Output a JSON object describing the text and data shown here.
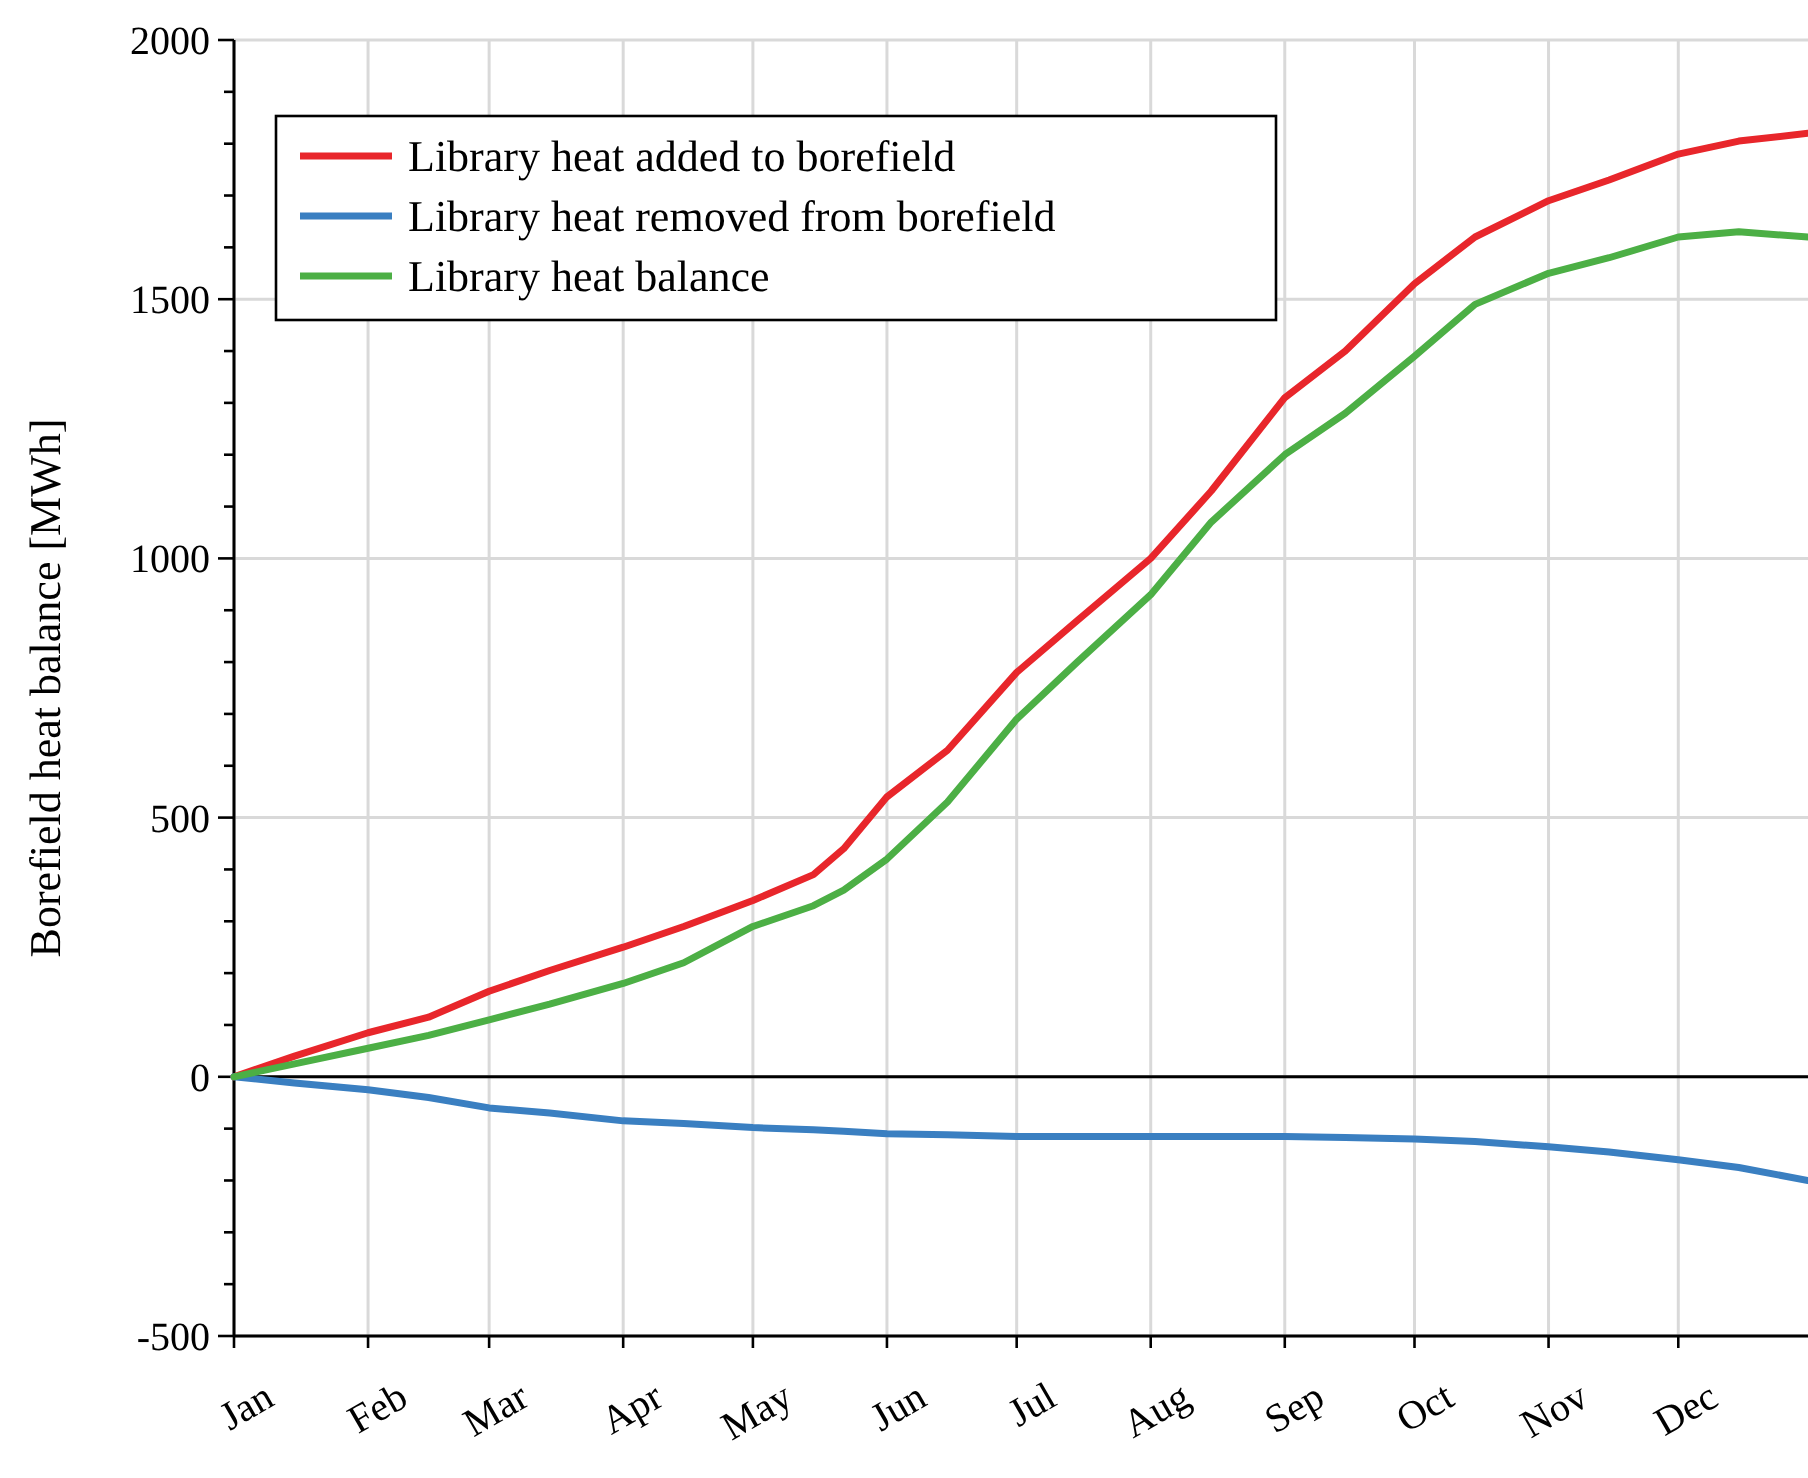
{
  "chart_data": {
    "type": "line",
    "ylabel": "Borefield heat balance [MWh]",
    "xlim": [
      "--01-01",
      "--12-31"
    ],
    "xticks": [
      {
        "value": "--01-01",
        "label": "Jan"
      },
      {
        "value": "--02-01",
        "label": "Feb"
      },
      {
        "value": "--03-01",
        "label": "Mar"
      },
      {
        "value": "--04-01",
        "label": "Apr"
      },
      {
        "value": "--05-01",
        "label": "May"
      },
      {
        "value": "--06-01",
        "label": "Jun"
      },
      {
        "value": "--07-01",
        "label": "Jul"
      },
      {
        "value": "--08-01",
        "label": "Aug"
      },
      {
        "value": "--09-01",
        "label": "Sep"
      },
      {
        "value": "--10-01",
        "label": "Oct"
      },
      {
        "value": "--11-01",
        "label": "Nov"
      },
      {
        "value": "--12-01",
        "label": "Dec"
      }
    ],
    "ylim": [
      -500,
      2000
    ],
    "yticks": [
      -500,
      {
        "value": -400,
        "label": null
      },
      {
        "value": -300,
        "label": null
      },
      {
        "value": -200,
        "label": null
      },
      {
        "value": -100,
        "label": null
      },
      0,
      {
        "value": 100,
        "label": null
      },
      {
        "value": 200,
        "label": null
      },
      {
        "value": 300,
        "label": null
      },
      {
        "value": 400,
        "label": null
      },
      500,
      {
        "value": 600,
        "label": null
      },
      {
        "value": 700,
        "label": null
      },
      {
        "value": 800,
        "label": null
      },
      {
        "value": 900,
        "label": null
      },
      1000,
      {
        "value": 1100,
        "label": null
      },
      {
        "value": 1200,
        "label": null
      },
      {
        "value": 1300,
        "label": null
      },
      {
        "value": 1400,
        "label": null
      },
      1500,
      {
        "value": 1600,
        "label": null
      },
      {
        "value": 1700,
        "label": null
      },
      {
        "value": 1800,
        "label": null
      },
      {
        "value": 1900,
        "label": null
      },
      2000
    ],
    "x": [
      "--01-01",
      "--01-15",
      "--02-01",
      "--02-15",
      "--03-01",
      "--03-15",
      "--04-01",
      "--04-15",
      "--05-01",
      "--05-15",
      "--05-22",
      "--06-01",
      "--06-15",
      "--07-01",
      "--07-15",
      "--08-01",
      "--08-15",
      "--09-01",
      "--09-15",
      "--10-01",
      "--10-15",
      "--11-01",
      "--11-15",
      "--12-01",
      "--12-15",
      "--12-31"
    ],
    "series": [
      {
        "name": "Library heat added to borefield",
        "color": "#e8262b",
        "values": [
          0,
          40,
          85,
          115,
          165,
          205,
          250,
          290,
          340,
          390,
          440,
          540,
          630,
          780,
          880,
          1000,
          1130,
          1310,
          1400,
          1530,
          1620,
          1690,
          1730,
          1780,
          1805,
          1820
        ]
      },
      {
        "name": "Library heat removed from borefield",
        "color": "#3a7fc1",
        "values": [
          0,
          -12,
          -25,
          -40,
          -60,
          -70,
          -85,
          -90,
          -98,
          -102,
          -105,
          -110,
          -112,
          -115,
          -115,
          -115,
          -115,
          -115,
          -117,
          -120,
          -125,
          -135,
          -145,
          -160,
          -175,
          -200
        ]
      },
      {
        "name": "Library heat balance",
        "color": "#4caf45",
        "values": [
          0,
          25,
          55,
          80,
          110,
          140,
          180,
          220,
          290,
          330,
          360,
          420,
          530,
          690,
          800,
          930,
          1070,
          1200,
          1280,
          1390,
          1490,
          1550,
          1580,
          1620,
          1630,
          1620
        ]
      }
    ],
    "grid": true,
    "legend": "top left",
    "line_style": "solid",
    "marker": "none"
  }
}
